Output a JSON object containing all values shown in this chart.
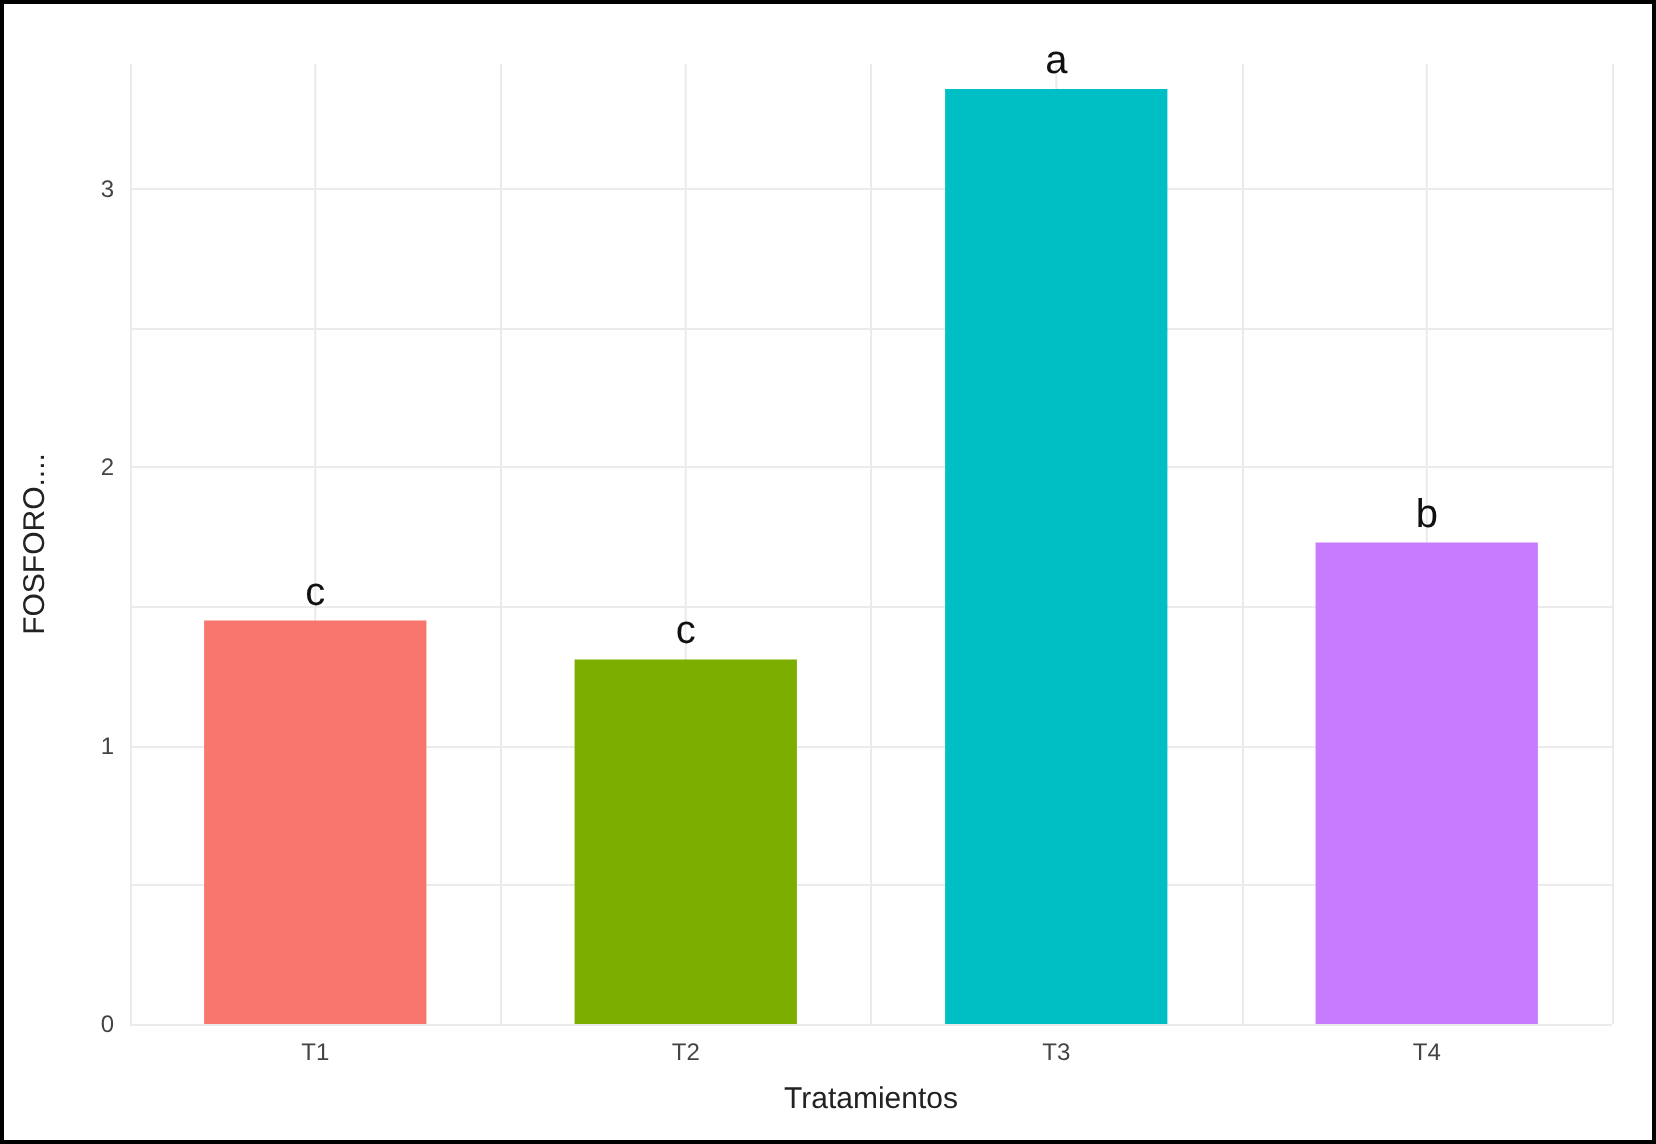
{
  "chart_data": {
    "type": "bar",
    "xlabel": "Tratamientos",
    "ylabel": "FOSFORO....",
    "categories": [
      "T1",
      "T2",
      "T3",
      "T4"
    ],
    "values": [
      1.45,
      1.31,
      3.36,
      1.73
    ],
    "colors": [
      "#f8766d",
      "#7cae00",
      "#00bfc4",
      "#c77cff"
    ],
    "ylim": [
      0,
      3.45
    ],
    "yticks": [
      0,
      {
        "value": 0.5,
        "label": null
      },
      1,
      {
        "value": 1.5,
        "label": null
      },
      2,
      {
        "value": 2.5,
        "label": null
      },
      3
    ],
    "grid": true,
    "annotations": [
      {
        "text": "c",
        "x": "T1",
        "y": 1.45
      },
      {
        "text": "c",
        "x": "T2",
        "y": 1.31
      },
      {
        "text": "a",
        "x": "T3",
        "y": 3.36
      },
      {
        "text": "b",
        "x": "T4",
        "y": 1.73
      }
    ]
  }
}
